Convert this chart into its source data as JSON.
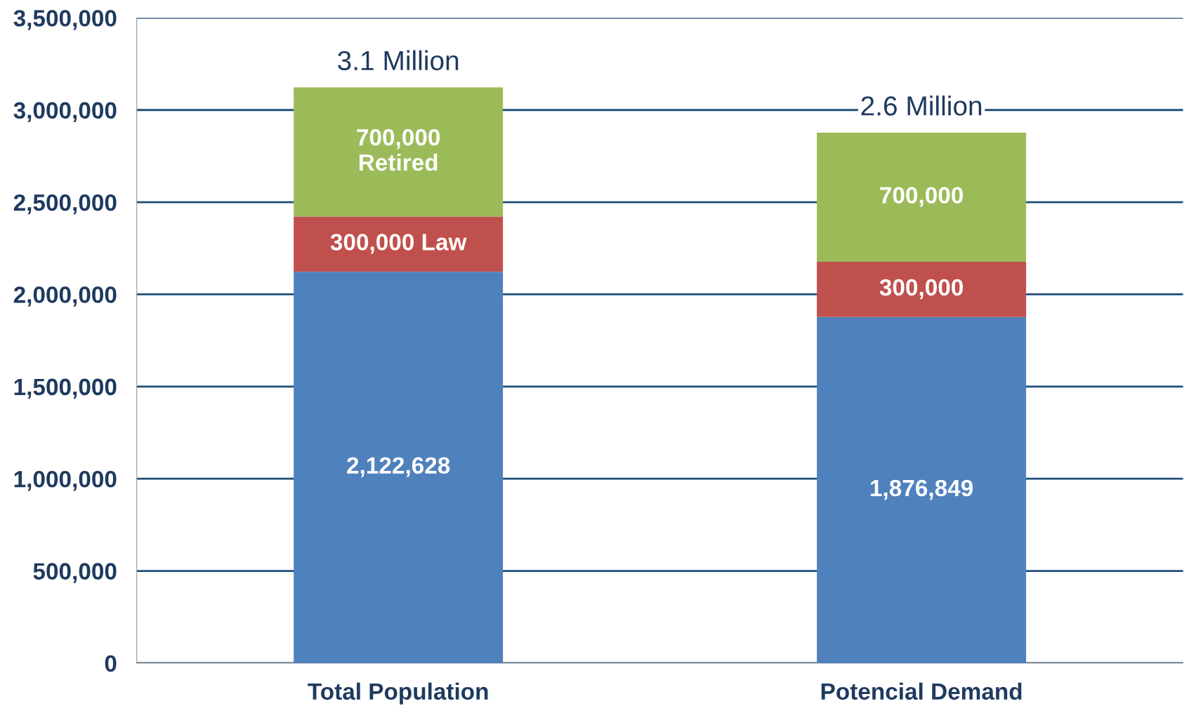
{
  "chart_data": {
    "type": "bar",
    "stacked": true,
    "categories": [
      "Total Population",
      "Potencial Demand"
    ],
    "series": [
      {
        "color": "#4f81bd",
        "values": [
          2122628,
          1876849
        ],
        "value_labels": [
          "2,122,628",
          "1,876,849"
        ]
      },
      {
        "color": "#c0504d",
        "values": [
          300000,
          300000
        ],
        "value_labels": [
          "300,000 Law",
          "300,000"
        ]
      },
      {
        "color": "#9bbb59",
        "values": [
          700000,
          700000
        ],
        "value_labels": [
          "700,000\nRetired",
          "700,000"
        ]
      }
    ],
    "annotations": [
      {
        "text": "3.1 Million",
        "x": "Total Population",
        "y": 3122628
      },
      {
        "text": "2.6 Million",
        "x": "Potencial Demand",
        "y": 2876849
      }
    ],
    "ylim": [
      0,
      3500000
    ],
    "yticks": [
      {
        "value": 0,
        "label": "0"
      },
      {
        "value": 500000,
        "label": "500,000"
      },
      {
        "value": 1000000,
        "label": "1,000,000"
      },
      {
        "value": 1500000,
        "label": "1,500,000"
      },
      {
        "value": 2000000,
        "label": "2,000,000"
      },
      {
        "value": 2500000,
        "label": "2,500,000"
      },
      {
        "value": 3000000,
        "label": "3,000,000"
      },
      {
        "value": 3500000,
        "label": "3,500,000"
      }
    ],
    "grid": "y",
    "legend": false
  }
}
